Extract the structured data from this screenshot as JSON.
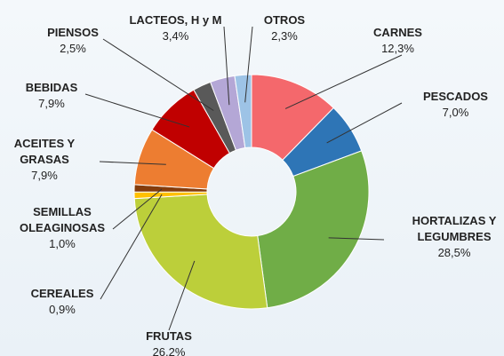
{
  "chart_data": {
    "type": "donut",
    "categories": [
      "CARNES",
      "PESCADOS",
      "HORTALIZAS Y LEGUMBRES",
      "FRUTAS",
      "CEREALES",
      "SEMILLAS OLEAGINOSAS",
      "ACEITES Y GRASAS",
      "BEBIDAS",
      "PIENSOS",
      "LACTEOS, H y M",
      "OTROS"
    ],
    "values": [
      12.3,
      7.0,
      28.5,
      26.2,
      0.9,
      1.0,
      7.9,
      7.9,
      2.5,
      3.4,
      2.3
    ],
    "value_labels": [
      "12,3%",
      "7,0%",
      "28,5%",
      "26,2%",
      "0,9%",
      "1,0%",
      "7,9%",
      "7,9%",
      "2,5%",
      "3,4%",
      "2,3%"
    ],
    "colors": [
      "#f4686c",
      "#2e75b6",
      "#70ad47",
      "#bccf3a",
      "#ffc000",
      "#843c0c",
      "#ed7d31",
      "#c00000",
      "#595959",
      "#b4a7d6",
      "#9dc3e6"
    ]
  }
}
